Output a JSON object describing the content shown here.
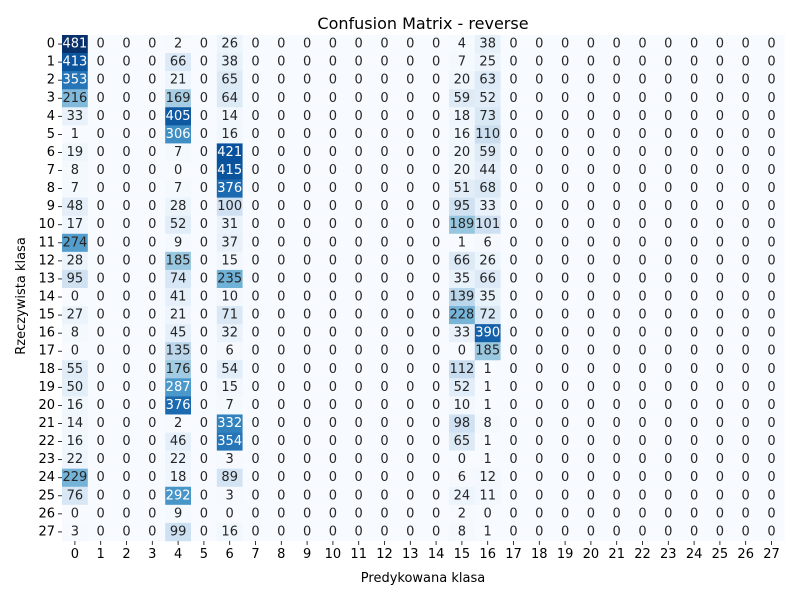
{
  "chart_data": {
    "type": "heatmap",
    "title": "Confusion Matrix - reverse",
    "xlabel": "Predykowana klasa",
    "ylabel": "Rzeczywista klasa",
    "x_categories": [
      "0",
      "1",
      "2",
      "3",
      "4",
      "5",
      "6",
      "7",
      "8",
      "9",
      "10",
      "11",
      "12",
      "13",
      "14",
      "15",
      "16",
      "17",
      "18",
      "19",
      "20",
      "21",
      "22",
      "23",
      "24",
      "25",
      "26",
      "27"
    ],
    "y_categories": [
      "0",
      "1",
      "2",
      "3",
      "4",
      "5",
      "6",
      "7",
      "8",
      "9",
      "10",
      "11",
      "12",
      "13",
      "14",
      "15",
      "16",
      "17",
      "18",
      "19",
      "20",
      "21",
      "22",
      "23",
      "24",
      "25",
      "26",
      "27"
    ],
    "colormap": "Blues",
    "value_range": [
      0,
      481
    ],
    "colorbar": false,
    "values": [
      [
        481,
        0,
        0,
        0,
        2,
        0,
        26,
        0,
        0,
        0,
        0,
        0,
        0,
        0,
        0,
        4,
        38,
        0,
        0,
        0,
        0,
        0,
        0,
        0,
        0,
        0,
        0,
        0
      ],
      [
        413,
        0,
        0,
        0,
        66,
        0,
        38,
        0,
        0,
        0,
        0,
        0,
        0,
        0,
        0,
        7,
        25,
        0,
        0,
        0,
        0,
        0,
        0,
        0,
        0,
        0,
        0,
        0
      ],
      [
        353,
        0,
        0,
        0,
        21,
        0,
        65,
        0,
        0,
        0,
        0,
        0,
        0,
        0,
        0,
        20,
        63,
        0,
        0,
        0,
        0,
        0,
        0,
        0,
        0,
        0,
        0,
        0
      ],
      [
        216,
        0,
        0,
        0,
        169,
        0,
        64,
        0,
        0,
        0,
        0,
        0,
        0,
        0,
        0,
        59,
        52,
        0,
        0,
        0,
        0,
        0,
        0,
        0,
        0,
        0,
        0,
        0
      ],
      [
        33,
        0,
        0,
        0,
        405,
        0,
        14,
        0,
        0,
        0,
        0,
        0,
        0,
        0,
        0,
        18,
        73,
        0,
        0,
        0,
        0,
        0,
        0,
        0,
        0,
        0,
        0,
        0
      ],
      [
        1,
        0,
        0,
        0,
        306,
        0,
        16,
        0,
        0,
        0,
        0,
        0,
        0,
        0,
        0,
        16,
        110,
        0,
        0,
        0,
        0,
        0,
        0,
        0,
        0,
        0,
        0,
        0
      ],
      [
        19,
        0,
        0,
        0,
        7,
        0,
        421,
        0,
        0,
        0,
        0,
        0,
        0,
        0,
        0,
        20,
        59,
        0,
        0,
        0,
        0,
        0,
        0,
        0,
        0,
        0,
        0,
        0
      ],
      [
        8,
        0,
        0,
        0,
        0,
        0,
        415,
        0,
        0,
        0,
        0,
        0,
        0,
        0,
        0,
        20,
        44,
        0,
        0,
        0,
        0,
        0,
        0,
        0,
        0,
        0,
        0,
        0
      ],
      [
        7,
        0,
        0,
        0,
        7,
        0,
        376,
        0,
        0,
        0,
        0,
        0,
        0,
        0,
        0,
        51,
        68,
        0,
        0,
        0,
        0,
        0,
        0,
        0,
        0,
        0,
        0,
        0
      ],
      [
        48,
        0,
        0,
        0,
        28,
        0,
        100,
        0,
        0,
        0,
        0,
        0,
        0,
        0,
        0,
        95,
        33,
        0,
        0,
        0,
        0,
        0,
        0,
        0,
        0,
        0,
        0,
        0
      ],
      [
        17,
        0,
        0,
        0,
        52,
        0,
        31,
        0,
        0,
        0,
        0,
        0,
        0,
        0,
        0,
        189,
        101,
        0,
        0,
        0,
        0,
        0,
        0,
        0,
        0,
        0,
        0,
        0
      ],
      [
        274,
        0,
        0,
        0,
        9,
        0,
        37,
        0,
        0,
        0,
        0,
        0,
        0,
        0,
        0,
        1,
        6,
        0,
        0,
        0,
        0,
        0,
        0,
        0,
        0,
        0,
        0,
        0
      ],
      [
        28,
        0,
        0,
        0,
        185,
        0,
        15,
        0,
        0,
        0,
        0,
        0,
        0,
        0,
        0,
        66,
        26,
        0,
        0,
        0,
        0,
        0,
        0,
        0,
        0,
        0,
        0,
        0
      ],
      [
        95,
        0,
        0,
        0,
        74,
        0,
        235,
        0,
        0,
        0,
        0,
        0,
        0,
        0,
        0,
        35,
        66,
        0,
        0,
        0,
        0,
        0,
        0,
        0,
        0,
        0,
        0,
        0
      ],
      [
        0,
        0,
        0,
        0,
        41,
        0,
        10,
        0,
        0,
        0,
        0,
        0,
        0,
        0,
        0,
        139,
        35,
        0,
        0,
        0,
        0,
        0,
        0,
        0,
        0,
        0,
        0,
        0
      ],
      [
        27,
        0,
        0,
        0,
        21,
        0,
        71,
        0,
        0,
        0,
        0,
        0,
        0,
        0,
        0,
        228,
        72,
        0,
        0,
        0,
        0,
        0,
        0,
        0,
        0,
        0,
        0,
        0
      ],
      [
        8,
        0,
        0,
        0,
        45,
        0,
        32,
        0,
        0,
        0,
        0,
        0,
        0,
        0,
        0,
        33,
        390,
        0,
        0,
        0,
        0,
        0,
        0,
        0,
        0,
        0,
        0,
        0
      ],
      [
        0,
        0,
        0,
        0,
        135,
        0,
        6,
        0,
        0,
        0,
        0,
        0,
        0,
        0,
        0,
        0,
        185,
        0,
        0,
        0,
        0,
        0,
        0,
        0,
        0,
        0,
        0,
        0
      ],
      [
        55,
        0,
        0,
        0,
        176,
        0,
        54,
        0,
        0,
        0,
        0,
        0,
        0,
        0,
        0,
        112,
        1,
        0,
        0,
        0,
        0,
        0,
        0,
        0,
        0,
        0,
        0,
        0
      ],
      [
        50,
        0,
        0,
        0,
        287,
        0,
        15,
        0,
        0,
        0,
        0,
        0,
        0,
        0,
        0,
        52,
        1,
        0,
        0,
        0,
        0,
        0,
        0,
        0,
        0,
        0,
        0,
        0
      ],
      [
        16,
        0,
        0,
        0,
        376,
        0,
        7,
        0,
        0,
        0,
        0,
        0,
        0,
        0,
        0,
        10,
        1,
        0,
        0,
        0,
        0,
        0,
        0,
        0,
        0,
        0,
        0,
        0
      ],
      [
        14,
        0,
        0,
        0,
        2,
        0,
        332,
        0,
        0,
        0,
        0,
        0,
        0,
        0,
        0,
        98,
        8,
        0,
        0,
        0,
        0,
        0,
        0,
        0,
        0,
        0,
        0,
        0
      ],
      [
        16,
        0,
        0,
        0,
        46,
        0,
        354,
        0,
        0,
        0,
        0,
        0,
        0,
        0,
        0,
        65,
        1,
        0,
        0,
        0,
        0,
        0,
        0,
        0,
        0,
        0,
        0,
        0
      ],
      [
        22,
        0,
        0,
        0,
        22,
        0,
        3,
        0,
        0,
        0,
        0,
        0,
        0,
        0,
        0,
        0,
        1,
        0,
        0,
        0,
        0,
        0,
        0,
        0,
        0,
        0,
        0,
        0
      ],
      [
        229,
        0,
        0,
        0,
        18,
        0,
        89,
        0,
        0,
        0,
        0,
        0,
        0,
        0,
        0,
        6,
        12,
        0,
        0,
        0,
        0,
        0,
        0,
        0,
        0,
        0,
        0,
        0
      ],
      [
        76,
        0,
        0,
        0,
        292,
        0,
        3,
        0,
        0,
        0,
        0,
        0,
        0,
        0,
        0,
        24,
        11,
        0,
        0,
        0,
        0,
        0,
        0,
        0,
        0,
        0,
        0,
        0
      ],
      [
        0,
        0,
        0,
        0,
        9,
        0,
        0,
        0,
        0,
        0,
        0,
        0,
        0,
        0,
        0,
        2,
        0,
        0,
        0,
        0,
        0,
        0,
        0,
        0,
        0,
        0,
        0,
        0
      ],
      [
        3,
        0,
        0,
        0,
        99,
        0,
        16,
        0,
        0,
        0,
        0,
        0,
        0,
        0,
        0,
        8,
        1,
        0,
        0,
        0,
        0,
        0,
        0,
        0,
        0,
        0,
        0,
        0
      ]
    ]
  }
}
